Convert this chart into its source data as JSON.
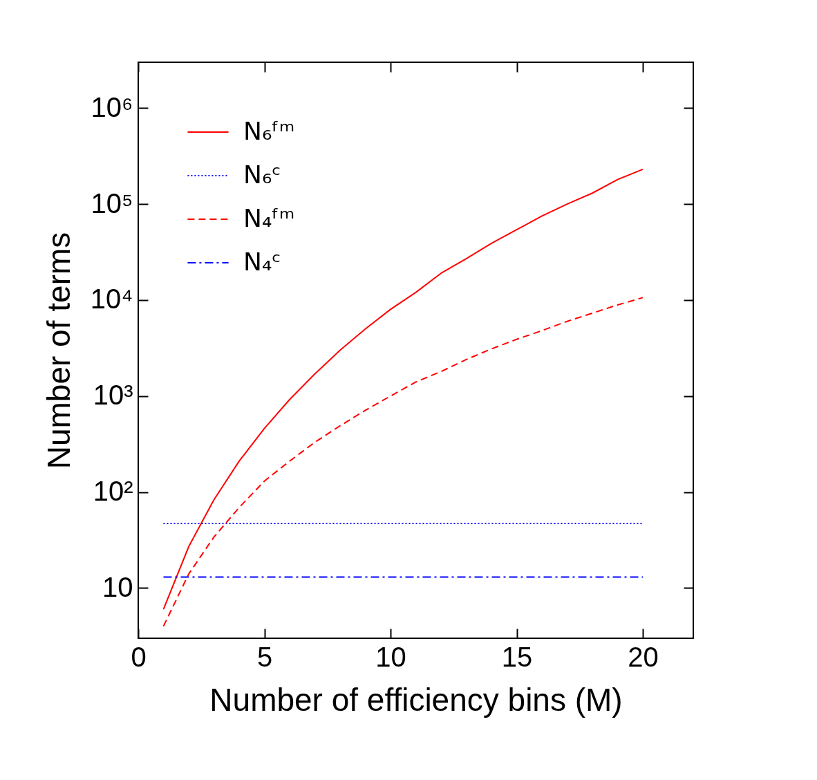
{
  "chart_data": {
    "type": "line",
    "xlabel": "Number of efficiency bins (M)",
    "ylabel": "Number of terms",
    "log": "y",
    "xlim": [
      0,
      22
    ],
    "xticks": [
      0,
      5,
      10,
      15,
      20
    ],
    "ylim": [
      3,
      3000000
    ],
    "yticks": [
      10,
      {
        "value": 100,
        "label": "10²"
      },
      {
        "value": 1000,
        "label": "10³"
      },
      {
        "value": 10000,
        "label": "10⁴"
      },
      {
        "value": 100000,
        "label": "10⁵"
      },
      {
        "value": 1000000,
        "label": "10⁶"
      }
    ],
    "legend": "top left",
    "grid": false,
    "series": [
      {
        "name": "N₆ᶠᵐ",
        "color": "#ff0000",
        "line_style": "solid",
        "x": [
          1,
          2,
          3,
          4,
          5,
          6,
          7,
          8,
          9,
          10,
          11,
          12,
          13,
          14,
          15,
          16,
          17,
          18,
          19,
          20
        ],
        "values": [
          6,
          27,
          83,
          210,
          460,
          920,
          1700,
          3000,
          5000,
          8000,
          12000,
          19000,
          27000,
          39000,
          54000,
          75000,
          100000,
          130000,
          180000,
          230000
        ]
      },
      {
        "name": "N₆ᶜ",
        "color": "#0000ff",
        "line_style": "dotted",
        "x": [
          1,
          20
        ],
        "values": [
          47,
          47
        ]
      },
      {
        "name": "N₄ᶠᵐ",
        "color": "#ff0000",
        "line_style": "dashed",
        "x": [
          1,
          2,
          3,
          4,
          5,
          6,
          7,
          8,
          9,
          10,
          11,
          12,
          13,
          14,
          15,
          16,
          17,
          18,
          19,
          20
        ],
        "values": [
          4,
          14,
          34,
          69,
          130,
          210,
          330,
          490,
          710,
          1000,
          1400,
          1800,
          2400,
          3100,
          3900,
          4800,
          6000,
          7300,
          8900,
          10600
        ]
      },
      {
        "name": "N₄ᶜ",
        "color": "#0000ff",
        "line_style": "dashdot",
        "x": [
          1,
          20
        ],
        "values": [
          13,
          13
        ]
      }
    ]
  }
}
